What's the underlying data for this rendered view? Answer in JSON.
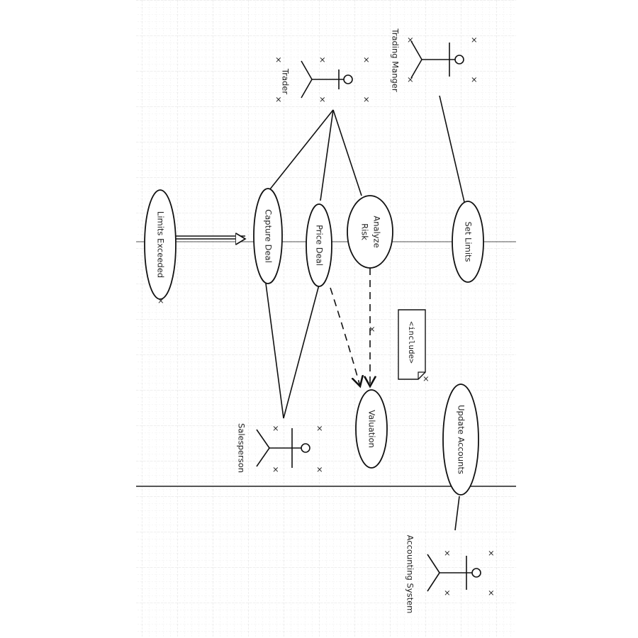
{
  "actors": {
    "trader": "Trader",
    "trading_manager": "Trading Manger",
    "salesperson": "Salesperson",
    "accounting_system": "Accounting System"
  },
  "use_cases": {
    "limits_exceeded": "Limits Exceeded",
    "capture_deal": "Capture Deal",
    "price_deal": "Price Deal",
    "analyze_risk_line1": "Analyze",
    "analyze_risk_line2": "Risk",
    "set_limits": "Set Limits",
    "valuation": "Valuation",
    "update_accounts": "Update Accounts"
  },
  "notes": {
    "include": "<include>"
  },
  "colors": {
    "ink": "#111111",
    "grid_minor": "#ececec",
    "grid_major": "#dcdcdc",
    "divider": "#555555"
  }
}
